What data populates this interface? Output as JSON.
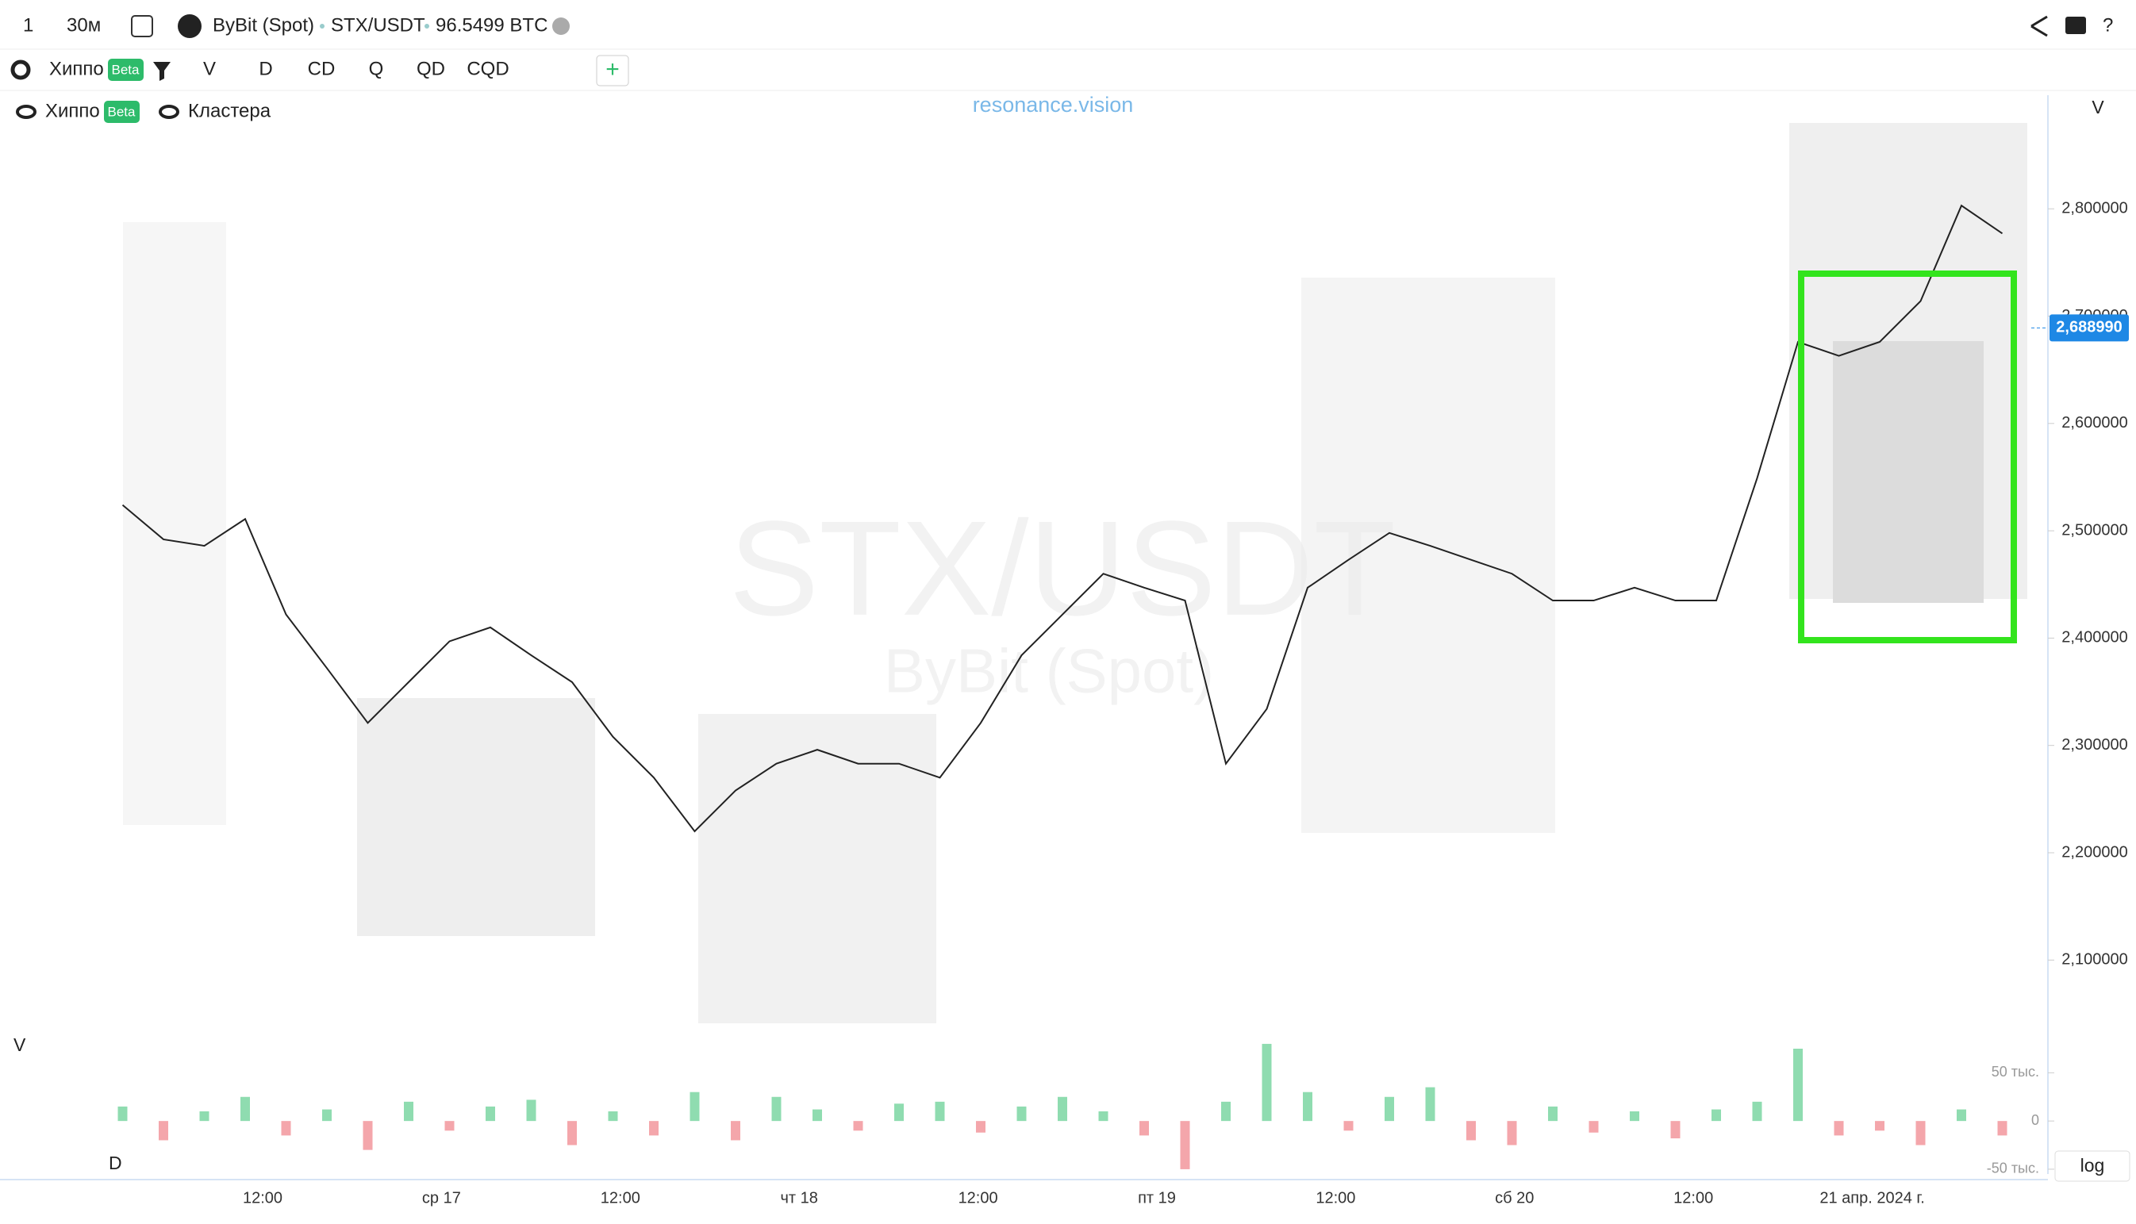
{
  "toolbar": {
    "interval_count": "1",
    "interval": "30м",
    "exchange": "ByBit (Spot)",
    "pair": "STX/USDT",
    "volume": "96.5499 BTC"
  },
  "tools": {
    "indicator": "Хиппо",
    "badge": "Beta",
    "buttons": [
      "V",
      "D",
      "CD",
      "Q",
      "QD",
      "CQD"
    ]
  },
  "legend": {
    "layer1": "Хиппо",
    "badge": "Beta",
    "layer2": "Кластера"
  },
  "brand": "resonance.vision",
  "watermark": {
    "pair": "STX/USDT",
    "exchange": "ByBit (Spot)"
  },
  "axis_label": "V",
  "pane_labels": {
    "volume": "V",
    "delta": "D"
  },
  "log_button": "log",
  "x_labels": [
    "12:00",
    "ср 17",
    "12:00",
    "чт 18",
    "12:00",
    "пт 19",
    "12:00",
    "сб 20",
    "12:00",
    "21 апр. 2024 г."
  ],
  "chart_data": [
    {
      "type": "line",
      "color": "#222222",
      "values": [
        2.524,
        2.492,
        2.486,
        2.511,
        2.422,
        2.372,
        2.321,
        2.359,
        2.397,
        2.41,
        2.384,
        2.359,
        2.308,
        2.27,
        2.22,
        2.258,
        2.283,
        2.296,
        2.283,
        2.283,
        2.27,
        2.321,
        2.384,
        2.422,
        2.46,
        2.447,
        2.435,
        2.283,
        2.334,
        2.447,
        2.473,
        2.498,
        2.486,
        2.473,
        2.46,
        2.435,
        2.435,
        2.447,
        2.435,
        2.435,
        2.549,
        2.676,
        2.663,
        2.676,
        2.714,
        2.803,
        2.777
      ],
      "ylim": [
        2.03,
        2.88
      ],
      "yticks": [
        {
          "value": 2.1,
          "label": "2,100000"
        },
        {
          "value": 2.2,
          "label": "2,200000"
        },
        {
          "value": 2.3,
          "label": "2,300000"
        },
        {
          "value": 2.4,
          "label": "2,400000"
        },
        {
          "value": 2.5,
          "label": "2,500000"
        },
        {
          "value": 2.6,
          "label": "2,600000"
        },
        {
          "value": 2.7,
          "label": "2,700000"
        },
        {
          "value": 2.8,
          "label": "2,800000"
        }
      ],
      "current_price": {
        "value": 2.68899,
        "label": "2,688990"
      }
    },
    {
      "type": "bar",
      "up_color": "#8fdcb0",
      "down_color": "#f4a6ab",
      "values": [
        15,
        -20,
        10,
        25,
        -15,
        12,
        -30,
        20,
        -10,
        15,
        22,
        -25,
        10,
        -15,
        30,
        -20,
        25,
        12,
        -10,
        18,
        20,
        -12,
        15,
        25,
        10,
        -15,
        -50,
        20,
        80,
        30,
        -10,
        25,
        35,
        -20,
        -25,
        15,
        -12,
        10,
        -18,
        12,
        20,
        75,
        -15,
        -10,
        -25,
        12,
        -15
      ],
      "ylim": [
        -55,
        75
      ],
      "yticks": [
        {
          "value": 50,
          "label": "50 тыс."
        },
        0,
        {
          "value": -50,
          "label": "-50 тыс."
        }
      ]
    }
  ]
}
